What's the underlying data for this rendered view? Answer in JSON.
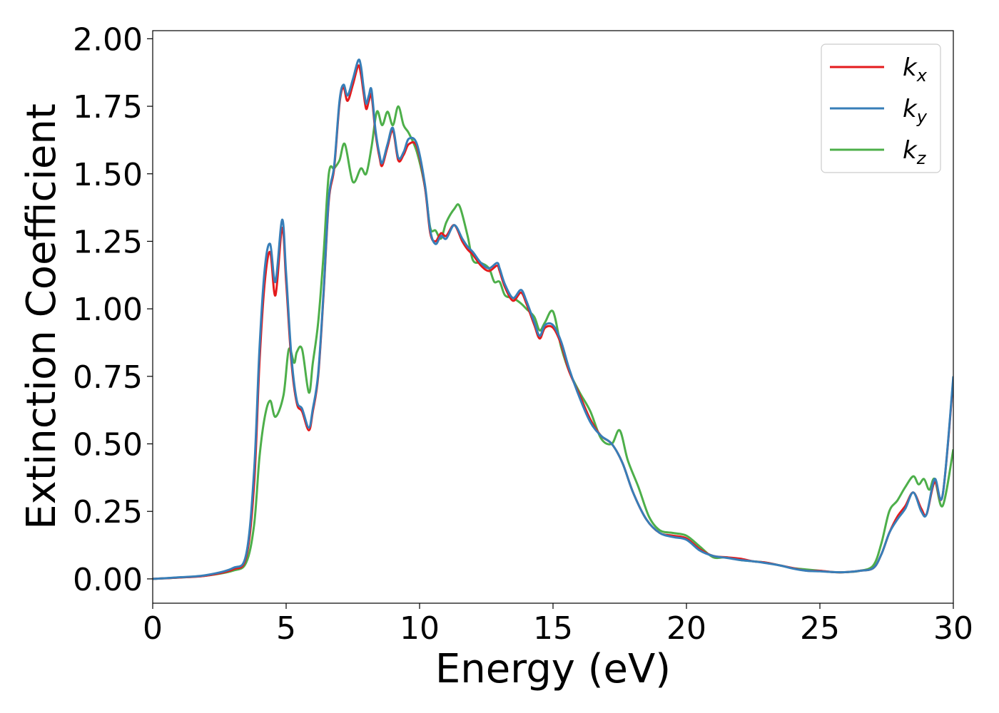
{
  "chart_data": {
    "type": "line",
    "title": "",
    "xlabel": "Energy (eV)",
    "ylabel": "Extinction Coefficient",
    "xlim": [
      0,
      30
    ],
    "ylim": [
      -0.09,
      2.03
    ],
    "xticks": [
      0,
      5,
      10,
      15,
      20,
      25,
      30
    ],
    "xtick_labels": [
      "0",
      "5",
      "10",
      "15",
      "20",
      "25",
      "30"
    ],
    "yticks": [
      0.0,
      0.25,
      0.5,
      0.75,
      1.0,
      1.25,
      1.5,
      1.75,
      2.0
    ],
    "ytick_labels": [
      "0.00",
      "0.25",
      "0.50",
      "0.75",
      "1.00",
      "1.25",
      "1.50",
      "1.75",
      "2.00"
    ],
    "grid": false,
    "legend_position": "top-right",
    "series": [
      {
        "name": "k",
        "subscript": "x",
        "color": "#e41a1c",
        "x": [
          0,
          1,
          2,
          3,
          3.5,
          3.8,
          4.0,
          4.2,
          4.4,
          4.6,
          4.85,
          5.0,
          5.2,
          5.4,
          5.6,
          5.85,
          6.0,
          6.2,
          6.4,
          6.6,
          6.8,
          7.0,
          7.15,
          7.3,
          7.5,
          7.7,
          7.8,
          7.9,
          8.0,
          8.1,
          8.2,
          8.35,
          8.5,
          8.6,
          8.8,
          9.0,
          9.2,
          9.4,
          9.6,
          9.9,
          10.2,
          10.4,
          10.6,
          10.8,
          11.0,
          11.3,
          11.6,
          11.8,
          12.0,
          12.3,
          12.6,
          12.9,
          13.0,
          13.2,
          13.5,
          13.8,
          14.0,
          14.3,
          14.5,
          14.7,
          15.0,
          15.3,
          15.6,
          16.0,
          16.4,
          16.8,
          17.2,
          17.6,
          18.0,
          18.5,
          19.0,
          19.5,
          20.0,
          20.5,
          21.0,
          21.5,
          22.0,
          22.5,
          23.0,
          23.5,
          24.0,
          24.5,
          25.0,
          25.5,
          26.0,
          26.5,
          27.0,
          27.3,
          27.6,
          27.9,
          28.2,
          28.5,
          28.8,
          29.0,
          29.3,
          29.6,
          30.0
        ],
        "y": [
          0,
          0.005,
          0.012,
          0.035,
          0.08,
          0.35,
          0.8,
          1.1,
          1.21,
          1.05,
          1.3,
          1.1,
          0.8,
          0.65,
          0.62,
          0.55,
          0.62,
          0.75,
          1.05,
          1.4,
          1.52,
          1.76,
          1.82,
          1.77,
          1.83,
          1.9,
          1.87,
          1.8,
          1.74,
          1.77,
          1.79,
          1.65,
          1.56,
          1.53,
          1.6,
          1.66,
          1.55,
          1.57,
          1.61,
          1.6,
          1.45,
          1.28,
          1.25,
          1.28,
          1.27,
          1.31,
          1.25,
          1.22,
          1.2,
          1.16,
          1.14,
          1.16,
          1.14,
          1.08,
          1.03,
          1.06,
          1.02,
          0.94,
          0.89,
          0.93,
          0.93,
          0.87,
          0.77,
          0.68,
          0.59,
          0.53,
          0.5,
          0.43,
          0.32,
          0.22,
          0.17,
          0.16,
          0.15,
          0.11,
          0.085,
          0.08,
          0.075,
          0.065,
          0.06,
          0.05,
          0.04,
          0.03,
          0.03,
          0.025,
          0.025,
          0.03,
          0.04,
          0.09,
          0.17,
          0.23,
          0.27,
          0.32,
          0.26,
          0.24,
          0.36,
          0.31,
          0.74
        ]
      },
      {
        "name": "k",
        "subscript": "y",
        "color": "#377eb8",
        "x": [
          0,
          1,
          2,
          3,
          3.5,
          3.8,
          4.0,
          4.2,
          4.4,
          4.6,
          4.85,
          5.0,
          5.2,
          5.4,
          5.6,
          5.85,
          6.0,
          6.2,
          6.4,
          6.6,
          6.8,
          7.0,
          7.15,
          7.3,
          7.5,
          7.7,
          7.8,
          7.9,
          8.0,
          8.1,
          8.2,
          8.35,
          8.5,
          8.6,
          8.8,
          9.0,
          9.2,
          9.4,
          9.6,
          9.9,
          10.2,
          10.4,
          10.6,
          10.8,
          11.0,
          11.3,
          11.6,
          11.8,
          12.0,
          12.3,
          12.6,
          12.9,
          13.0,
          13.2,
          13.5,
          13.8,
          14.0,
          14.3,
          14.5,
          14.7,
          15.0,
          15.3,
          15.6,
          16.0,
          16.4,
          16.8,
          17.2,
          17.6,
          18.0,
          18.5,
          19.0,
          19.5,
          20.0,
          20.5,
          21.0,
          21.5,
          22.0,
          22.5,
          23.0,
          23.5,
          24.0,
          24.5,
          25.0,
          25.5,
          26.0,
          26.5,
          27.0,
          27.3,
          27.6,
          27.9,
          28.2,
          28.5,
          28.8,
          29.0,
          29.3,
          29.6,
          30.0
        ],
        "y": [
          0,
          0.006,
          0.014,
          0.04,
          0.09,
          0.4,
          0.85,
          1.15,
          1.24,
          1.1,
          1.33,
          1.13,
          0.82,
          0.66,
          0.63,
          0.56,
          0.63,
          0.76,
          1.06,
          1.41,
          1.53,
          1.77,
          1.83,
          1.79,
          1.85,
          1.92,
          1.9,
          1.82,
          1.76,
          1.79,
          1.81,
          1.66,
          1.57,
          1.54,
          1.61,
          1.67,
          1.56,
          1.58,
          1.63,
          1.61,
          1.46,
          1.29,
          1.24,
          1.27,
          1.26,
          1.31,
          1.26,
          1.23,
          1.21,
          1.17,
          1.15,
          1.17,
          1.15,
          1.09,
          1.04,
          1.07,
          1.03,
          0.95,
          0.9,
          0.94,
          0.94,
          0.88,
          0.78,
          0.67,
          0.58,
          0.53,
          0.5,
          0.43,
          0.32,
          0.22,
          0.17,
          0.155,
          0.145,
          0.105,
          0.085,
          0.078,
          0.07,
          0.065,
          0.058,
          0.05,
          0.038,
          0.03,
          0.028,
          0.025,
          0.025,
          0.03,
          0.04,
          0.09,
          0.17,
          0.22,
          0.26,
          0.32,
          0.25,
          0.24,
          0.37,
          0.31,
          0.75
        ]
      },
      {
        "name": "k",
        "subscript": "z",
        "color": "#4daf4a",
        "x": [
          0,
          1,
          2,
          3,
          3.5,
          3.8,
          4.0,
          4.2,
          4.4,
          4.6,
          4.9,
          5.1,
          5.3,
          5.4,
          5.6,
          5.85,
          6.0,
          6.2,
          6.4,
          6.6,
          6.8,
          7.0,
          7.2,
          7.5,
          7.8,
          8.0,
          8.2,
          8.4,
          8.6,
          8.8,
          9.0,
          9.2,
          9.4,
          9.6,
          9.9,
          10.2,
          10.4,
          10.6,
          10.8,
          11.0,
          11.3,
          11.5,
          11.8,
          12.0,
          12.3,
          12.6,
          12.8,
          13.0,
          13.2,
          13.5,
          13.8,
          14.0,
          14.3,
          14.5,
          14.7,
          15.0,
          15.3,
          15.6,
          16.0,
          16.4,
          16.8,
          17.2,
          17.5,
          17.8,
          18.2,
          18.6,
          19.0,
          19.5,
          20.0,
          20.5,
          21.0,
          21.5,
          22.0,
          22.5,
          23.0,
          23.5,
          24.0,
          24.5,
          25.0,
          25.5,
          26.0,
          26.5,
          27.0,
          27.3,
          27.6,
          27.9,
          28.2,
          28.5,
          28.7,
          28.9,
          29.1,
          29.3,
          29.6,
          30.0
        ],
        "y": [
          0,
          0.005,
          0.012,
          0.03,
          0.06,
          0.2,
          0.45,
          0.6,
          0.66,
          0.6,
          0.68,
          0.85,
          0.8,
          0.84,
          0.85,
          0.69,
          0.8,
          0.95,
          1.2,
          1.5,
          1.52,
          1.55,
          1.61,
          1.47,
          1.52,
          1.5,
          1.6,
          1.73,
          1.68,
          1.73,
          1.68,
          1.75,
          1.68,
          1.65,
          1.58,
          1.45,
          1.3,
          1.29,
          1.26,
          1.32,
          1.37,
          1.38,
          1.27,
          1.18,
          1.17,
          1.15,
          1.1,
          1.1,
          1.05,
          1.04,
          1.02,
          1.0,
          0.97,
          0.92,
          0.95,
          0.99,
          0.86,
          0.77,
          0.69,
          0.62,
          0.52,
          0.5,
          0.55,
          0.44,
          0.34,
          0.23,
          0.18,
          0.17,
          0.16,
          0.12,
          0.08,
          0.08,
          0.07,
          0.065,
          0.06,
          0.05,
          0.04,
          0.035,
          0.03,
          0.025,
          0.025,
          0.03,
          0.05,
          0.13,
          0.25,
          0.29,
          0.34,
          0.38,
          0.35,
          0.37,
          0.33,
          0.37,
          0.27,
          0.48
        ]
      }
    ]
  }
}
